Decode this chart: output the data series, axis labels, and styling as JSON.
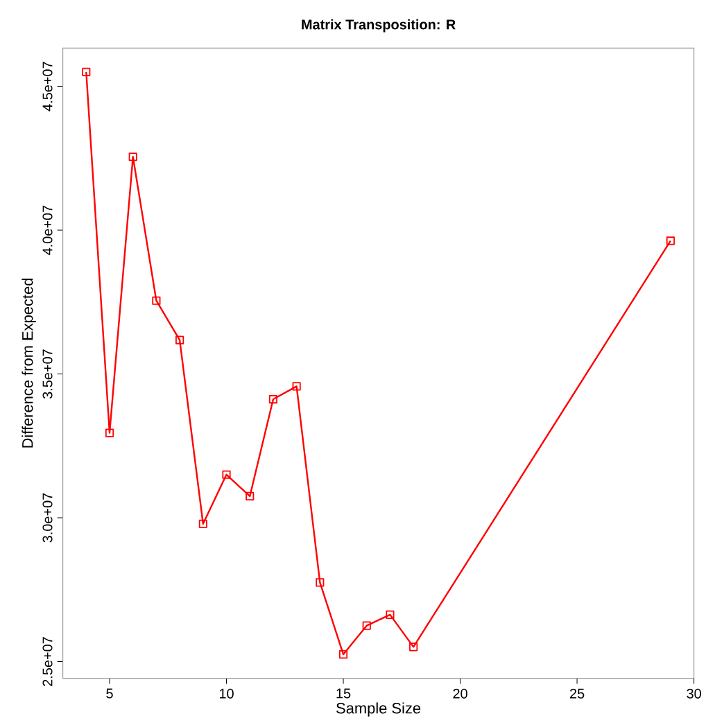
{
  "chart_data": {
    "type": "line",
    "title": "Matrix Transposition: R",
    "xlabel": "Sample Size",
    "ylabel": "Difference from Expected",
    "x": [
      4,
      5,
      6,
      7,
      8,
      9,
      10,
      11,
      12,
      13,
      14,
      15,
      16,
      17,
      18,
      29
    ],
    "series": [
      {
        "color": "#ff0000",
        "values": [
          45500000,
          32950000,
          42550000,
          37550000,
          36180000,
          29790000,
          31500000,
          30750000,
          34120000,
          34570000,
          27750000,
          25250000,
          26250000,
          26630000,
          25510000,
          39630000
        ]
      }
    ],
    "xlim": [
      3,
      30
    ],
    "ylim": [
      24420000,
      46330000
    ],
    "xticks": [
      5,
      10,
      15,
      20,
      25,
      30
    ],
    "yticks": [
      {
        "value": 25000000,
        "label": "2.5e+07"
      },
      {
        "value": 30000000,
        "label": "3.0e+07"
      },
      {
        "value": 35000000,
        "label": "3.5e+07"
      },
      {
        "value": 40000000,
        "label": "4.0e+07"
      },
      {
        "value": 45000000,
        "label": "4.5e+07"
      }
    ],
    "marker": "square",
    "line_style": "solid"
  }
}
